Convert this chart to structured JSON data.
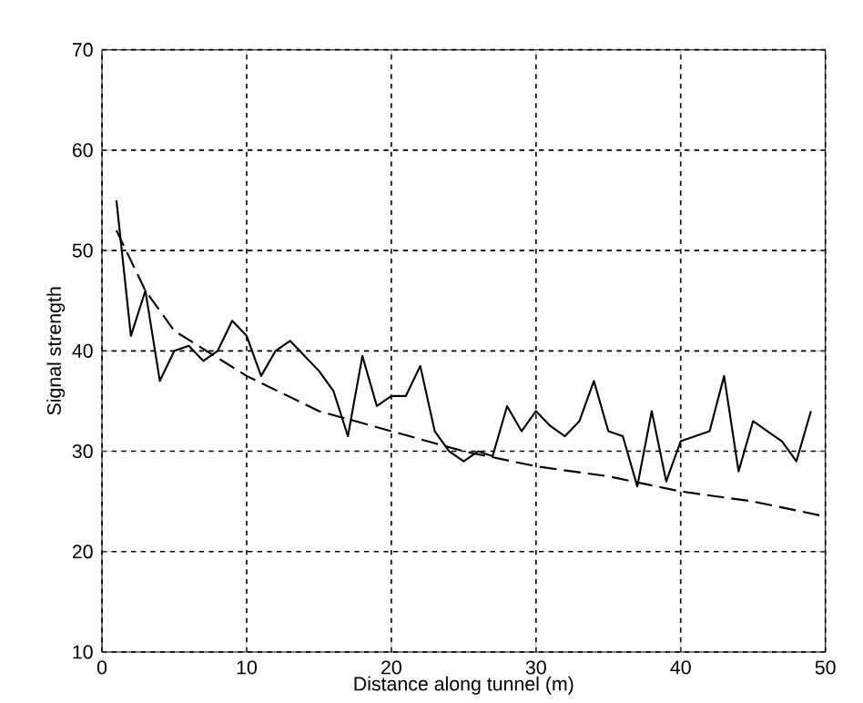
{
  "chart_data": {
    "type": "line",
    "xlabel": "Distance along tunnel (m)",
    "ylabel": "Signal strength",
    "xlim": [
      0,
      50
    ],
    "ylim": [
      10,
      70
    ],
    "xticks": [
      0,
      10,
      20,
      30,
      40,
      50
    ],
    "yticks": [
      10,
      20,
      30,
      40,
      50,
      60,
      70
    ],
    "grid": true,
    "series": [
      {
        "color": "#000000",
        "line_style": "solid",
        "x": [
          1,
          2,
          3,
          4,
          5,
          6,
          7,
          8,
          9,
          10,
          11,
          12,
          13,
          14,
          15,
          16,
          17,
          18,
          19,
          20,
          21,
          22,
          23,
          24,
          25,
          26,
          27,
          28,
          29,
          30,
          31,
          32,
          33,
          34,
          35,
          36,
          37,
          38,
          39,
          40,
          41,
          42,
          43,
          44,
          45,
          46,
          47,
          48,
          49
        ],
        "values": [
          55,
          41.5,
          46,
          37,
          40,
          40.5,
          39,
          40,
          43,
          41.5,
          37.5,
          40,
          41,
          39.5,
          38,
          36,
          31.5,
          39.5,
          34.5,
          35.5,
          35.5,
          38.5,
          32,
          30,
          29,
          30,
          29.5,
          34.5,
          32,
          34,
          32.5,
          31.5,
          33,
          37,
          32,
          31.5,
          26.5,
          34,
          27,
          31,
          31.5,
          32,
          37.5,
          28,
          33,
          32,
          31,
          29,
          34
        ]
      },
      {
        "color": "#000000",
        "line_style": "dashed",
        "x": [
          1,
          2,
          3,
          5,
          10,
          15,
          20,
          25,
          30,
          35,
          40,
          45,
          50
        ],
        "values": [
          52,
          49,
          46,
          42,
          37.5,
          34,
          32,
          30,
          28.5,
          27.5,
          26,
          25,
          23.5
        ]
      }
    ]
  }
}
